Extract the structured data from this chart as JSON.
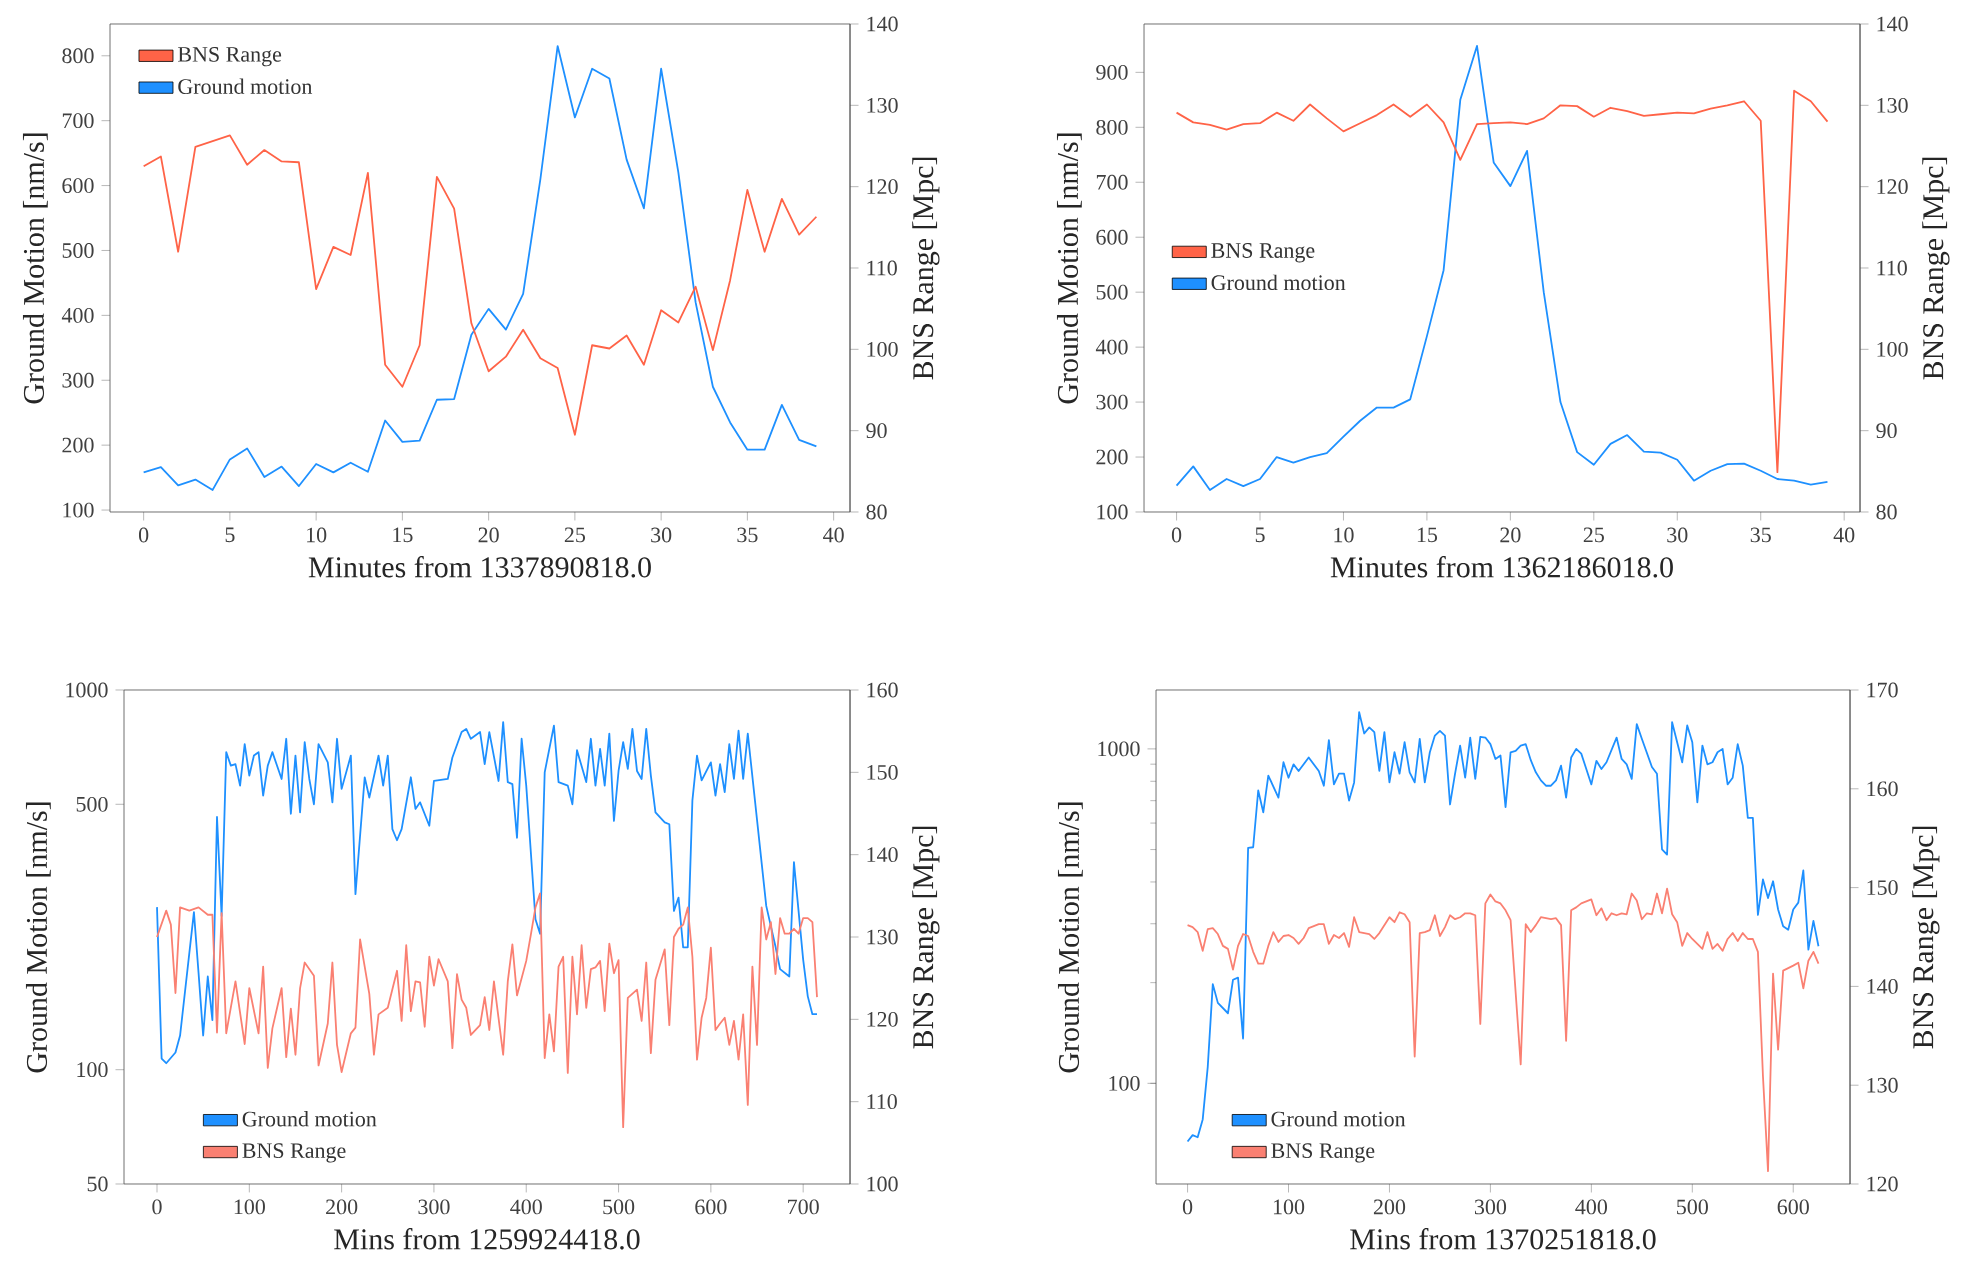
{
  "chart_data": [
    {
      "type": "line",
      "xlabel": "Minutes from 1337890818.0",
      "ylabel": "Ground Motion [nm/s]",
      "y2label": "BNS Range [Mpc]",
      "legend": "top left",
      "x": [
        0,
        1,
        2,
        3,
        4,
        5,
        6,
        7,
        8,
        9,
        10,
        11,
        12,
        13,
        14,
        15,
        16,
        17,
        18,
        19,
        20,
        21,
        22,
        23,
        24,
        25,
        26,
        27,
        28,
        29,
        30,
        31,
        32,
        33,
        34,
        35,
        36,
        37,
        38,
        39
      ],
      "series": [
        {
          "name": "BNS Range",
          "color": "#ff6347",
          "axis": "y2",
          "values": [
            122.5,
            123.7,
            112.0,
            124.9,
            125.6,
            126.3,
            122.7,
            124.5,
            123.1,
            123.0,
            107.4,
            112.6,
            111.6,
            121.7,
            98.1,
            95.4,
            100.5,
            121.2,
            117.3,
            103.2,
            97.3,
            99.1,
            102.4,
            98.9,
            97.7,
            89.5,
            100.5,
            100.1,
            101.7,
            98.1,
            104.8,
            103.3,
            107.7,
            99.9,
            108.5,
            119.6,
            112.0,
            118.5,
            114.1,
            116.3
          ]
        },
        {
          "name": "Ground motion",
          "color": "#1e90ff",
          "axis": "y",
          "values": [
            158,
            166,
            138,
            147,
            131,
            178,
            195,
            151,
            167,
            137,
            171,
            158,
            173,
            159,
            238,
            205,
            207,
            270,
            271,
            370,
            410,
            378,
            433,
            610,
            815,
            705,
            780,
            765,
            640,
            565,
            780,
            620,
            420,
            290,
            235,
            193,
            193,
            262,
            208,
            198
          ]
        }
      ],
      "xlim": [
        -1.95,
        40.95
      ],
      "xticks": [
        0,
        5,
        10,
        15,
        20,
        25,
        30,
        35,
        40
      ],
      "ylim": [
        97,
        849
      ],
      "yticks": [
        100,
        200,
        300,
        400,
        500,
        600,
        700,
        800
      ],
      "y2lim": [
        80,
        140
      ],
      "y2ticks": [
        80,
        90,
        100,
        110,
        120,
        130,
        140
      ]
    },
    {
      "type": "line",
      "xlabel": "Minutes from 1362186018.0",
      "ylabel": "Ground Motion [nm/s]",
      "y2label": "BNS Range [Mpc]",
      "legend": "left",
      "x": [
        0,
        1,
        2,
        3,
        4,
        5,
        6,
        7,
        8,
        9,
        10,
        11,
        12,
        13,
        14,
        15,
        16,
        17,
        18,
        19,
        20,
        21,
        22,
        23,
        24,
        25,
        26,
        27,
        28,
        29,
        30,
        31,
        32,
        33,
        34,
        35,
        36,
        37,
        38,
        39
      ],
      "series": [
        {
          "name": "BNS Range",
          "color": "#ff6347",
          "axis": "y2",
          "values": [
            129.1,
            127.9,
            127.6,
            127.0,
            127.7,
            127.8,
            129.1,
            128.1,
            130.1,
            128.4,
            126.8,
            127.8,
            128.8,
            130.1,
            128.6,
            130.1,
            127.9,
            123.3,
            127.7,
            127.8,
            127.9,
            127.7,
            128.4,
            130.0,
            129.9,
            128.6,
            129.7,
            129.3,
            128.7,
            128.9,
            129.1,
            129.0,
            129.6,
            130.0,
            130.5,
            128.1,
            84.9,
            131.8,
            130.5,
            128.0
          ]
        },
        {
          "name": "Ground motion",
          "color": "#1e90ff",
          "axis": "y",
          "values": [
            148,
            183,
            140,
            160,
            147,
            160,
            200,
            190,
            200,
            207,
            237,
            266,
            290,
            290,
            305,
            420,
            540,
            850,
            948,
            736,
            693,
            757,
            500,
            300,
            209,
            186,
            224,
            240,
            210,
            208,
            195,
            157,
            175,
            187,
            188,
            175,
            160,
            157,
            150,
            155
          ]
        }
      ],
      "xlim": [
        -1.95,
        40.95
      ],
      "xticks": [
        0,
        5,
        10,
        15,
        20,
        25,
        30,
        35,
        40
      ],
      "ylim": [
        100,
        988
      ],
      "yticks": [
        100,
        200,
        300,
        400,
        500,
        600,
        700,
        800,
        900
      ],
      "y2lim": [
        80,
        140
      ],
      "y2ticks": [
        80,
        90,
        100,
        110,
        120,
        130,
        140
      ]
    },
    {
      "type": "line",
      "xlabel": "Mins from 1259924418.0",
      "ylabel": "Ground Motion [nm/s]",
      "y2label": "BNS Range [Mpc]",
      "legend": "bottom left",
      "log": "y",
      "series": [
        {
          "name": "Ground motion",
          "color": "#1e90ff",
          "axis": "y",
          "x": [
            0,
            5,
            10,
            20,
            25,
            40,
            45,
            50,
            55,
            60,
            65,
            70,
            75,
            80,
            85,
            90,
            95,
            100,
            105,
            110,
            115,
            120,
            125,
            135,
            140,
            145,
            150,
            155,
            160,
            165,
            170,
            175,
            185,
            190,
            195,
            200,
            210,
            215,
            225,
            230,
            240,
            245,
            250,
            255,
            260,
            265,
            275,
            280,
            285,
            295,
            300,
            315,
            320,
            330,
            335,
            340,
            350,
            355,
            360,
            370,
            375,
            380,
            385,
            390,
            395,
            400,
            410,
            415,
            420,
            430,
            435,
            445,
            450,
            455,
            465,
            470,
            475,
            480,
            485,
            490,
            495,
            500,
            505,
            510,
            515,
            520,
            525,
            530,
            535,
            540,
            550,
            555,
            560,
            565,
            570,
            575,
            580,
            585,
            590,
            600,
            605,
            610,
            615,
            620,
            625,
            630,
            635,
            640,
            660,
            670,
            675,
            685,
            690,
            700,
            705,
            710,
            715
          ],
          "values": [
            268,
            107,
            104,
            111,
            123,
            260,
            180,
            123,
            176,
            135,
            463,
            254,
            686,
            632,
            638,
            560,
            720,
            595,
            672,
            686,
            527,
            632,
            686,
            583,
            744,
            472,
            672,
            476,
            729,
            583,
            500,
            720,
            645,
            506,
            744,
            549,
            672,
            290,
            589,
            521,
            672,
            560,
            672,
            430,
            402,
            430,
            589,
            486,
            506,
            439,
            576,
            583,
            664,
            775,
            790,
            744,
            775,
            638,
            775,
            576,
            823,
            572,
            565,
            408,
            744,
            560,
            249,
            228,
            607,
            806,
            572,
            560,
            500,
            694,
            572,
            744,
            560,
            700,
            560,
            768,
            452,
            612,
            729,
            620,
            790,
            612,
            583,
            790,
            595,
            476,
            448,
            443,
            262,
            284,
            210,
            210,
            512,
            672,
            578,
            645,
            527,
            638,
            538,
            720,
            583,
            781,
            583,
            768,
            270,
            211,
            184,
            176,
            352,
            195,
            156,
            140,
            140
          ]
        },
        {
          "name": "BNS Range",
          "color": "#fa8072",
          "axis": "y2",
          "x": [
            0,
            10,
            15,
            20,
            25,
            35,
            45,
            55,
            60,
            65,
            70,
            75,
            85,
            95,
            100,
            110,
            115,
            120,
            125,
            135,
            140,
            145,
            150,
            155,
            160,
            170,
            175,
            185,
            190,
            195,
            200,
            210,
            215,
            220,
            230,
            235,
            240,
            250,
            260,
            265,
            270,
            275,
            280,
            285,
            290,
            295,
            300,
            305,
            315,
            320,
            325,
            330,
            335,
            340,
            350,
            355,
            360,
            365,
            375,
            380,
            385,
            390,
            395,
            400,
            405,
            410,
            415,
            420,
            425,
            430,
            435,
            440,
            445,
            450,
            455,
            460,
            465,
            470,
            475,
            480,
            485,
            490,
            495,
            500,
            505,
            510,
            520,
            525,
            530,
            535,
            540,
            550,
            555,
            560,
            565,
            570,
            575,
            580,
            585,
            590,
            595,
            600,
            605,
            610,
            615,
            620,
            625,
            630,
            635,
            640,
            645,
            650,
            655,
            660,
            665,
            670,
            675,
            680,
            685,
            690,
            695,
            700,
            705,
            710,
            715
          ],
          "values": [
            130.0,
            133.2,
            131.5,
            123.2,
            133.6,
            133.2,
            133.6,
            132.7,
            132.7,
            118.4,
            132.9,
            118.3,
            124.6,
            117.0,
            123.8,
            118.3,
            126.4,
            114.1,
            118.9,
            123.8,
            115.4,
            121.3,
            115.7,
            123.8,
            126.9,
            125.3,
            114.4,
            119.5,
            126.9,
            116.9,
            113.6,
            118.3,
            119.0,
            129.7,
            123.1,
            115.7,
            120.6,
            121.4,
            125.9,
            119.8,
            129.0,
            121.0,
            124.6,
            124.5,
            119.1,
            127.6,
            124.1,
            127.3,
            124.6,
            116.5,
            125.5,
            122.4,
            121.4,
            118.1,
            119.3,
            122.7,
            118.7,
            124.6,
            115.7,
            124.6,
            129.1,
            122.9,
            125.0,
            127.1,
            130.3,
            133.6,
            135.3,
            115.3,
            120.6,
            116.1,
            126.4,
            127.6,
            113.5,
            127.6,
            120.6,
            129.0,
            121.4,
            126.1,
            126.3,
            127.1,
            121.0,
            129.2,
            125.6,
            127.2,
            106.9,
            122.6,
            123.6,
            119.8,
            126.9,
            115.9,
            124.8,
            128.5,
            119.3,
            130.0,
            131.0,
            131.5,
            133.6,
            127.6,
            115.1,
            120.2,
            122.6,
            128.7,
            118.7,
            119.5,
            120.2,
            116.9,
            119.8,
            115.1,
            120.6,
            109.6,
            126.4,
            116.9,
            133.6,
            129.7,
            131.8,
            125.5,
            132.3,
            130.4,
            130.4,
            131.0,
            130.4,
            132.3,
            132.3,
            131.8,
            122.7
          ]
        }
      ],
      "xlim": [
        -35.75,
        750.75
      ],
      "xticks": [
        0,
        100,
        200,
        300,
        400,
        500,
        600,
        700
      ],
      "ylim": [
        50,
        1000
      ],
      "yticks": [
        50,
        100,
        500,
        1000
      ],
      "y2lim": [
        100,
        160
      ],
      "y2ticks": [
        100,
        110,
        120,
        130,
        140,
        150,
        160
      ]
    },
    {
      "type": "line",
      "xlabel": "Mins from 1370251818.0",
      "ylabel": "Ground Motion [nm/s]",
      "y2label": "BNS Range [Mpc]",
      "legend": "bottom left",
      "log": "y",
      "series": [
        {
          "name": "Ground motion",
          "color": "#1e90ff",
          "axis": "y",
          "x": [
            0,
            5,
            10,
            15,
            20,
            25,
            30,
            40,
            45,
            50,
            55,
            60,
            65,
            70,
            75,
            80,
            90,
            95,
            100,
            105,
            110,
            120,
            130,
            135,
            140,
            145,
            150,
            155,
            160,
            165,
            170,
            175,
            180,
            185,
            190,
            195,
            200,
            205,
            210,
            215,
            220,
            225,
            230,
            235,
            240,
            245,
            250,
            255,
            260,
            265,
            270,
            275,
            280,
            285,
            290,
            295,
            300,
            305,
            310,
            315,
            320,
            325,
            330,
            335,
            340,
            345,
            350,
            355,
            360,
            365,
            370,
            375,
            380,
            385,
            390,
            400,
            405,
            410,
            415,
            425,
            430,
            435,
            440,
            445,
            450,
            460,
            465,
            470,
            475,
            480,
            485,
            490,
            495,
            500,
            505,
            510,
            515,
            520,
            525,
            530,
            535,
            540,
            545,
            550,
            555,
            560,
            565,
            570,
            575,
            580,
            585,
            590,
            595,
            600,
            605,
            610,
            615,
            620,
            625
          ],
          "values": [
            67,
            70,
            69,
            78,
            112,
            198,
            174,
            162,
            204,
            207,
            136,
            506,
            508,
            751,
            646,
            832,
            715,
            912,
            820,
            899,
            859,
            942,
            859,
            776,
            1062,
            783,
            843,
            843,
            701,
            794,
            1288,
            1112,
            1159,
            1122,
            859,
            1122,
            794,
            977,
            843,
            1047,
            851,
            794,
            1072,
            794,
            977,
            1096,
            1132,
            1096,
            682,
            843,
            1023,
            820,
            1081,
            813,
            1086,
            1081,
            1033,
            933,
            955,
            670,
            977,
            986,
            1023,
            1033,
            925,
            851,
            805,
            776,
            776,
            805,
            891,
            715,
            942,
            1000,
            968,
            783,
            921,
            871,
            912,
            1081,
            933,
            899,
            813,
            1186,
            1072,
            883,
            843,
            501,
            483,
            1202,
            1047,
            912,
            1175,
            1047,
            692,
            1023,
            899,
            912,
            977,
            1000,
            783,
            820,
            1033,
            891,
            622,
            622,
            319,
            407,
            358,
            402,
            331,
            295,
            288,
            331,
            347,
            433,
            251,
            306,
            257
          ]
        },
        {
          "name": "BNS Range",
          "color": "#fa8072",
          "axis": "y2",
          "x": [
            0,
            5,
            10,
            15,
            20,
            25,
            30,
            35,
            40,
            45,
            50,
            55,
            60,
            65,
            70,
            75,
            80,
            85,
            90,
            95,
            100,
            105,
            110,
            115,
            120,
            130,
            135,
            140,
            145,
            150,
            155,
            160,
            165,
            170,
            180,
            185,
            190,
            200,
            205,
            210,
            215,
            220,
            225,
            230,
            235,
            240,
            245,
            250,
            255,
            260,
            265,
            270,
            275,
            280,
            285,
            290,
            295,
            300,
            305,
            310,
            315,
            320,
            330,
            335,
            340,
            345,
            350,
            360,
            365,
            370,
            375,
            380,
            385,
            390,
            395,
            400,
            405,
            410,
            415,
            420,
            425,
            430,
            435,
            440,
            445,
            450,
            455,
            460,
            465,
            470,
            475,
            480,
            485,
            490,
            495,
            500,
            505,
            510,
            515,
            520,
            525,
            530,
            535,
            540,
            545,
            550,
            555,
            560,
            565,
            570,
            575,
            580,
            585,
            590,
            600,
            605,
            610,
            615,
            620,
            625
          ],
          "values": [
            146.2,
            146.0,
            145.5,
            143.6,
            145.8,
            145.9,
            145.3,
            144.1,
            143.8,
            141.7,
            144.1,
            145.3,
            145.1,
            143.5,
            142.3,
            142.3,
            144.1,
            145.5,
            144.5,
            145.1,
            145.2,
            144.9,
            144.3,
            144.9,
            145.9,
            146.3,
            146.3,
            144.3,
            145.2,
            144.9,
            145.4,
            144.0,
            147.0,
            145.5,
            145.3,
            144.8,
            145.4,
            147.0,
            146.5,
            147.5,
            147.3,
            146.5,
            132.9,
            145.4,
            145.5,
            145.7,
            147.2,
            145.1,
            146.0,
            147.2,
            146.8,
            147.0,
            147.4,
            147.4,
            147.2,
            136.2,
            148.4,
            149.3,
            148.6,
            148.4,
            147.7,
            146.7,
            132.1,
            146.3,
            145.5,
            146.2,
            147.0,
            146.8,
            146.9,
            146.2,
            134.5,
            147.7,
            148.0,
            148.4,
            148.6,
            148.8,
            147.2,
            147.9,
            146.7,
            147.4,
            147.2,
            147.4,
            147.3,
            149.4,
            148.7,
            146.8,
            147.4,
            147.3,
            149.4,
            147.4,
            149.9,
            147.3,
            146.5,
            144.1,
            145.4,
            144.8,
            144.3,
            143.8,
            145.5,
            143.8,
            144.3,
            143.6,
            144.8,
            145.4,
            144.6,
            145.4,
            144.8,
            144.8,
            143.5,
            130.9,
            121.3,
            141.3,
            133.6,
            141.6,
            142.1,
            142.4,
            139.8,
            142.6,
            143.5,
            142.3
          ]
        }
      ],
      "xlim": [
        -31.25,
        656.25
      ],
      "xticks": [
        0,
        100,
        200,
        300,
        400,
        500,
        600
      ],
      "ylim": [
        50,
        1500
      ],
      "yticks": [
        100,
        1000
      ],
      "y2lim": [
        120,
        170
      ],
      "y2ticks": [
        120,
        130,
        140,
        150,
        160,
        170
      ]
    }
  ]
}
